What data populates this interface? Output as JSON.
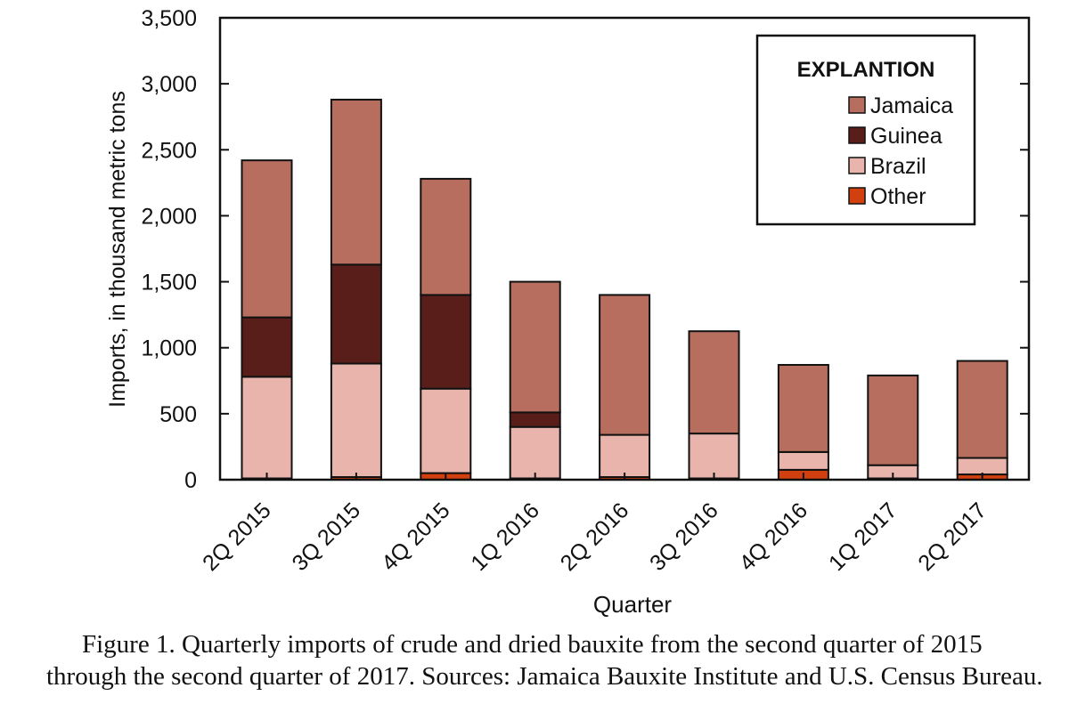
{
  "chart_data": {
    "type": "bar",
    "stacked": true,
    "categories": [
      "2Q 2015",
      "3Q 2015",
      "4Q 2015",
      "1Q 2016",
      "2Q 2016",
      "3Q 2016",
      "4Q 2016",
      "1Q 2017",
      "2Q 2017"
    ],
    "series": [
      {
        "name": "Other",
        "color": "#d2400f",
        "values": [
          10,
          20,
          50,
          10,
          20,
          10,
          75,
          10,
          40
        ]
      },
      {
        "name": "Brazil",
        "color": "#e8b4ac",
        "values": [
          770,
          860,
          640,
          390,
          320,
          340,
          135,
          100,
          125
        ]
      },
      {
        "name": "Guinea",
        "color": "#5a1e1a",
        "values": [
          450,
          750,
          710,
          110,
          0,
          0,
          0,
          0,
          0
        ]
      },
      {
        "name": "Jamaica",
        "color": "#b86e5e",
        "values": [
          1190,
          1250,
          880,
          990,
          1060,
          775,
          660,
          680,
          735
        ]
      }
    ],
    "ylabel": "Imports, in thousand metric tons",
    "xlabel": "Quarter",
    "ylim": [
      0,
      3500
    ],
    "yticks": [
      0,
      500,
      1000,
      1500,
      2000,
      2500,
      3000,
      3500
    ],
    "ytick_labels": [
      "0",
      "500",
      "1,000",
      "1,500",
      "2,000",
      "2,500",
      "3,000",
      "3,500"
    ],
    "legend": {
      "title": "EXPLANTION",
      "placement": "top-right",
      "entries": [
        "Jamaica",
        "Guinea",
        "Brazil",
        "Other"
      ]
    },
    "grid": false
  },
  "caption": "Figure 1. Quarterly imports of crude and dried bauxite from the second quarter of 2015 through the second quarter of 2017. Sources: Jamaica Bauxite Institute and U.S. Census Bureau."
}
